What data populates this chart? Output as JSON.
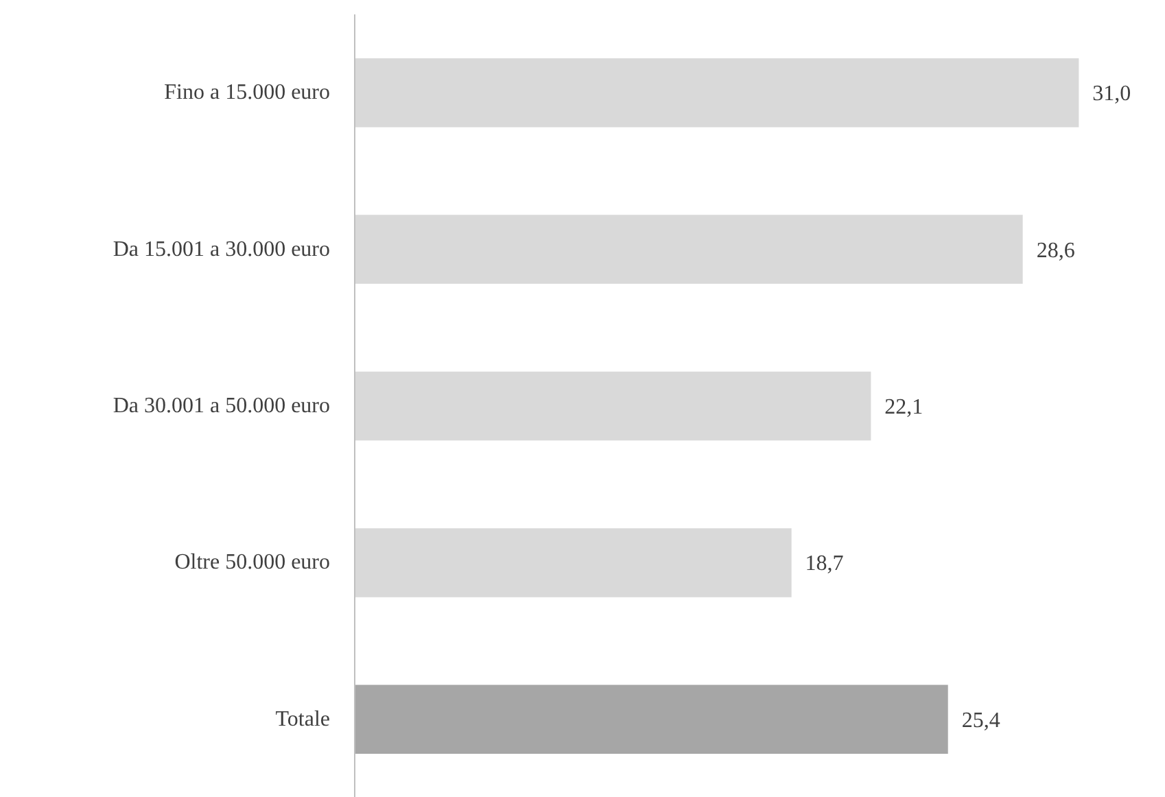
{
  "chart_data": {
    "type": "bar",
    "orientation": "horizontal",
    "categories": [
      "Fino a 15.000 euro",
      "Da 15.001 a 30.000 euro",
      "Da 30.001 a 50.000 euro",
      "Oltre 50.000 euro",
      "Totale"
    ],
    "values": [
      31.0,
      28.6,
      22.1,
      18.7,
      25.4
    ],
    "colors": [
      "#d9d9d9",
      "#d9d9d9",
      "#d9d9d9",
      "#d9d9d9",
      "#a6a6a6"
    ],
    "value_labels": [
      "31,0",
      "28,6",
      "22,1",
      "18,7",
      "25,4"
    ],
    "grid": false
  }
}
